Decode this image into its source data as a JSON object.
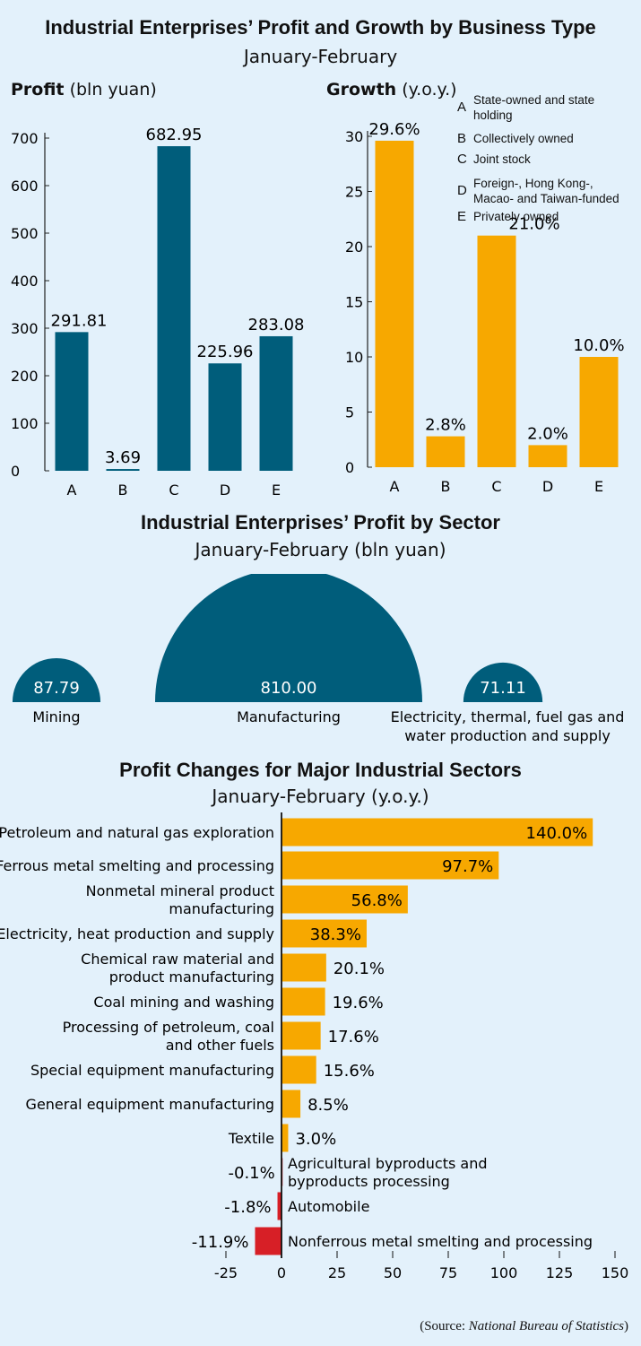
{
  "header": {
    "title": "Industrial Enterprises’ Profit and Growth by Business Type",
    "subtitle": "January-February"
  },
  "profit_chart": {
    "label_bold": "Profit",
    "label_unit": "(bln yuan)"
  },
  "growth_chart": {
    "label_bold": "Growth",
    "label_unit": "(y.o.y.)"
  },
  "legend": [
    {
      "letter": "A",
      "lines": [
        "State-owned and state",
        "holding"
      ]
    },
    {
      "letter": "B",
      "lines": [
        "Collectively owned"
      ]
    },
    {
      "letter": "C",
      "lines": [
        "Joint stock"
      ]
    },
    {
      "letter": "D",
      "lines": [
        "Foreign-, Hong Kong-,",
        "Macao- and  Taiwan-funded"
      ]
    },
    {
      "letter": "E",
      "lines": [
        "Privately owned"
      ]
    }
  ],
  "sector": {
    "title": "Industrial Enterprises’ Profit by Sector",
    "subtitle": "January-February (bln yuan)"
  },
  "changes": {
    "title": "Profit Changes for Major Industrial Sectors",
    "subtitle": "January-February (y.o.y.)"
  },
  "source": {
    "prefix": "(Source: ",
    "name": "National Bureau of Statistics",
    "suffix": ")"
  },
  "colors": {
    "teal": "#005d7b",
    "orange": "#f7a800",
    "red": "#d71f26",
    "background": "#e3f1fb"
  },
  "chart_data": [
    {
      "type": "bar",
      "categories": [
        "A",
        "B",
        "C",
        "D",
        "E"
      ],
      "values": [
        291.81,
        3.69,
        682.95,
        225.96,
        283.08
      ],
      "value_labels": [
        "291.81",
        "3.69",
        "682.95",
        "225.96",
        "283.08"
      ],
      "yticks": [
        "0",
        "100",
        "200",
        "300",
        "400",
        "500",
        "600",
        "700"
      ],
      "ylim": [
        0,
        700
      ],
      "color": "#005d7b"
    },
    {
      "type": "bar",
      "categories": [
        "A",
        "B",
        "C",
        "D",
        "E"
      ],
      "values": [
        29.6,
        2.8,
        21.0,
        2.0,
        10.0
      ],
      "value_labels": [
        "29.6%",
        "2.8%",
        "21.0%",
        "2.0%",
        "10.0%"
      ],
      "yticks": [
        "0",
        "5",
        "10",
        "15",
        "20",
        "25",
        "30"
      ],
      "ylim": [
        0,
        30
      ],
      "color": "#f7a800"
    },
    {
      "type": "semicircle-area",
      "categories": [
        "Mining",
        "Manufacturing",
        "Electricity, thermal, fuel gas and water production and supply"
      ],
      "values": [
        87.79,
        810.0,
        71.11
      ],
      "value_labels": [
        "87.79",
        "810.00",
        "71.11"
      ],
      "label_lines": [
        [
          "Mining"
        ],
        [
          "Manufacturing"
        ],
        [
          "Electricity, thermal, fuel gas and",
          "water production and supply"
        ]
      ],
      "color": "#005d7b"
    },
    {
      "type": "bar",
      "orientation": "horizontal",
      "categories": [
        "Petroleum and natural gas exploration",
        "Ferrous metal smelting and processing",
        "Nonmetal mineral product manufacturing",
        "Electricity, heat production and supply",
        "Chemical raw material and product manufacturing",
        "Coal mining and washing",
        "Processing of petroleum, coal and other fuels",
        "Special equipment manufacturing",
        "General equipment manufacturing",
        "Textile",
        "Agricultural byproducts and byproducts processing",
        "Automobile",
        "Nonferrous metal smelting and processing"
      ],
      "label_lines": [
        [
          "Petroleum and natural gas exploration"
        ],
        [
          "Ferrous metal smelting and processing"
        ],
        [
          "Nonmetal mineral product",
          "manufacturing"
        ],
        [
          "Electricity, heat production and supply"
        ],
        [
          "Chemical raw material and",
          "product manufacturing"
        ],
        [
          "Coal mining and washing"
        ],
        [
          "Processing of petroleum, coal",
          "and other fuels"
        ],
        [
          "Special equipment manufacturing"
        ],
        [
          "General equipment manufacturing"
        ],
        [
          "Textile"
        ],
        [
          "Agricultural byproducts and",
          "byproducts processing"
        ],
        [
          "Automobile"
        ],
        [
          "Nonferrous metal smelting and processing"
        ]
      ],
      "values": [
        140.0,
        97.7,
        56.8,
        38.3,
        20.1,
        19.6,
        17.6,
        15.6,
        8.5,
        3.0,
        -0.1,
        -1.8,
        -11.9
      ],
      "value_labels": [
        "140.0%",
        "97.7%",
        "56.8%",
        "38.3%",
        "20.1%",
        "19.6%",
        "17.6%",
        "15.6%",
        "8.5%",
        "3.0%",
        "-0.1%",
        "-1.8%",
        "-11.9%"
      ],
      "xticks": [
        "-25",
        "0",
        "25",
        "50",
        "75",
        "100",
        "125",
        "150"
      ],
      "xlim": [
        -25,
        150
      ],
      "positive_color": "#f7a800",
      "negative_color": "#d71f26"
    }
  ]
}
